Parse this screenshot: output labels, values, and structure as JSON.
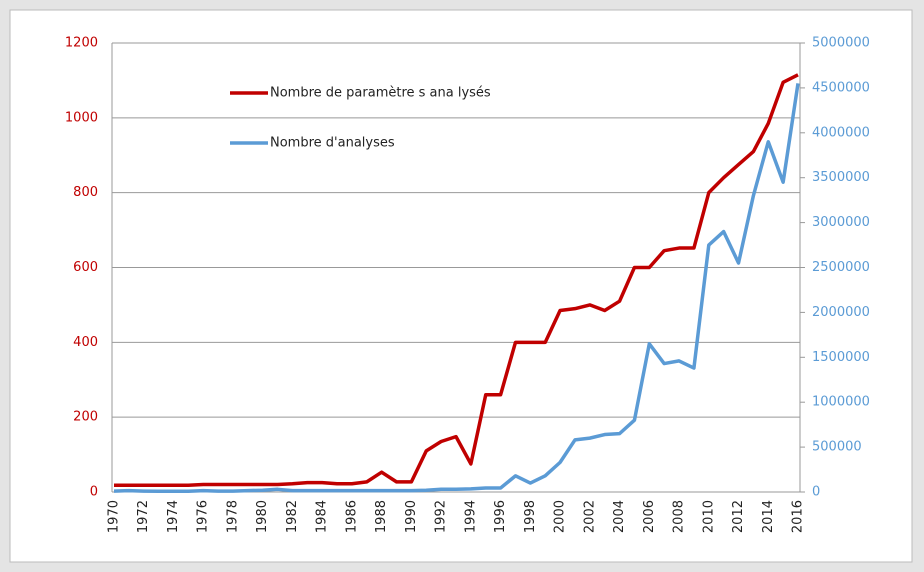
{
  "chart_data": {
    "type": "line",
    "categories": [
      "1970",
      null,
      "1972",
      null,
      "1974",
      null,
      "1976",
      null,
      "1978",
      null,
      "1980",
      null,
      "1982",
      null,
      "1984",
      null,
      "1986",
      null,
      "1988",
      null,
      "1990",
      null,
      "1992",
      null,
      "1994",
      null,
      "1996",
      null,
      "1998",
      null,
      "2000",
      null,
      "2002",
      null,
      "2004",
      null,
      "2006",
      null,
      "2008",
      null,
      "2010",
      null,
      "2012",
      null,
      "2014",
      null,
      "2016"
    ],
    "series": [
      {
        "name": "Nombre de paramètre s ana lysés",
        "color": "#c00000",
        "values": [
          18,
          18,
          18,
          18,
          18,
          18,
          20,
          20,
          20,
          20,
          20,
          20,
          22,
          25,
          25,
          22,
          22,
          27,
          53,
          27,
          27,
          110,
          135,
          148,
          75,
          260,
          260,
          400,
          400,
          400,
          485,
          490,
          500,
          485,
          510,
          600,
          600,
          645,
          652,
          652,
          800,
          840,
          875,
          910,
          985,
          1095,
          1115
        ]
      },
      {
        "name": "Nombre d'analyses",
        "color": "#5b9bd5",
        "axis": "y2",
        "values": [
          10000,
          15000,
          10000,
          8000,
          8000,
          8000,
          15000,
          10000,
          10000,
          15000,
          20000,
          30000,
          15000,
          15000,
          15000,
          15000,
          15000,
          15000,
          15000,
          15000,
          15000,
          20000,
          30000,
          30000,
          35000,
          45000,
          45000,
          180000,
          100000,
          180000,
          330000,
          580000,
          600000,
          640000,
          650000,
          800000,
          1650000,
          1430000,
          1460000,
          1380000,
          2750000,
          2900000,
          2550000,
          3300000,
          3900000,
          3450000,
          4550000
        ]
      }
    ],
    "ylim": [
      0,
      1200
    ],
    "yticks": [
      0,
      200,
      400,
      600,
      800,
      1000,
      1200
    ],
    "y2lim": [
      0,
      5000000
    ],
    "y2ticks": [
      0,
      500000,
      1000000,
      1500000,
      2000000,
      2500000,
      3000000,
      3500000,
      4000000,
      4500000,
      5000000
    ],
    "grid": true
  }
}
